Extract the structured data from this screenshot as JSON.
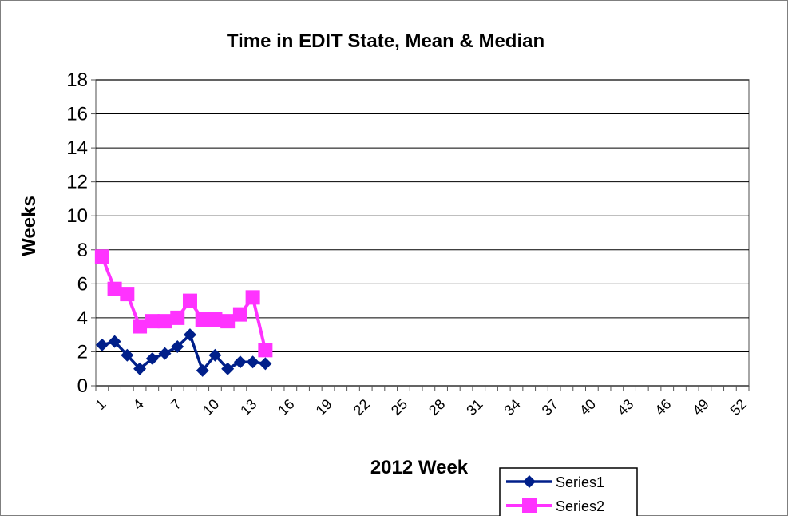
{
  "chart_data": {
    "type": "line",
    "title": "Time in EDIT State, Mean & Median",
    "xlabel": "2012 Week",
    "ylabel": "Weeks",
    "ylim": [
      0,
      18
    ],
    "yticks": [
      "0",
      "2",
      "4",
      "6",
      "8",
      "10",
      "12",
      "14",
      "16",
      "18"
    ],
    "xlim": [
      1,
      52
    ],
    "xticks": [
      "1",
      "4",
      "7",
      "10",
      "13",
      "16",
      "19",
      "22",
      "25",
      "28",
      "31",
      "34",
      "37",
      "40",
      "43",
      "46",
      "49",
      "52"
    ],
    "grid": "horizontal",
    "legend_position": "bottom-right",
    "series": [
      {
        "name": "Series1",
        "color": "#001f8a",
        "marker": "diamond",
        "x": [
          1,
          2,
          3,
          4,
          5,
          6,
          7,
          8,
          9,
          10,
          11,
          12,
          13,
          14
        ],
        "values": [
          2.4,
          2.6,
          1.8,
          1.0,
          1.6,
          1.9,
          2.3,
          3.0,
          0.9,
          1.8,
          1.0,
          1.4,
          1.4,
          1.3
        ]
      },
      {
        "name": "Series2",
        "color": "#ff33ff",
        "marker": "square",
        "x": [
          1,
          2,
          3,
          4,
          5,
          6,
          7,
          8,
          9,
          10,
          11,
          12,
          13,
          14
        ],
        "values": [
          7.6,
          5.7,
          5.4,
          3.5,
          3.8,
          3.8,
          4.0,
          5.0,
          3.9,
          3.9,
          3.8,
          4.2,
          5.2,
          2.1
        ]
      }
    ]
  }
}
